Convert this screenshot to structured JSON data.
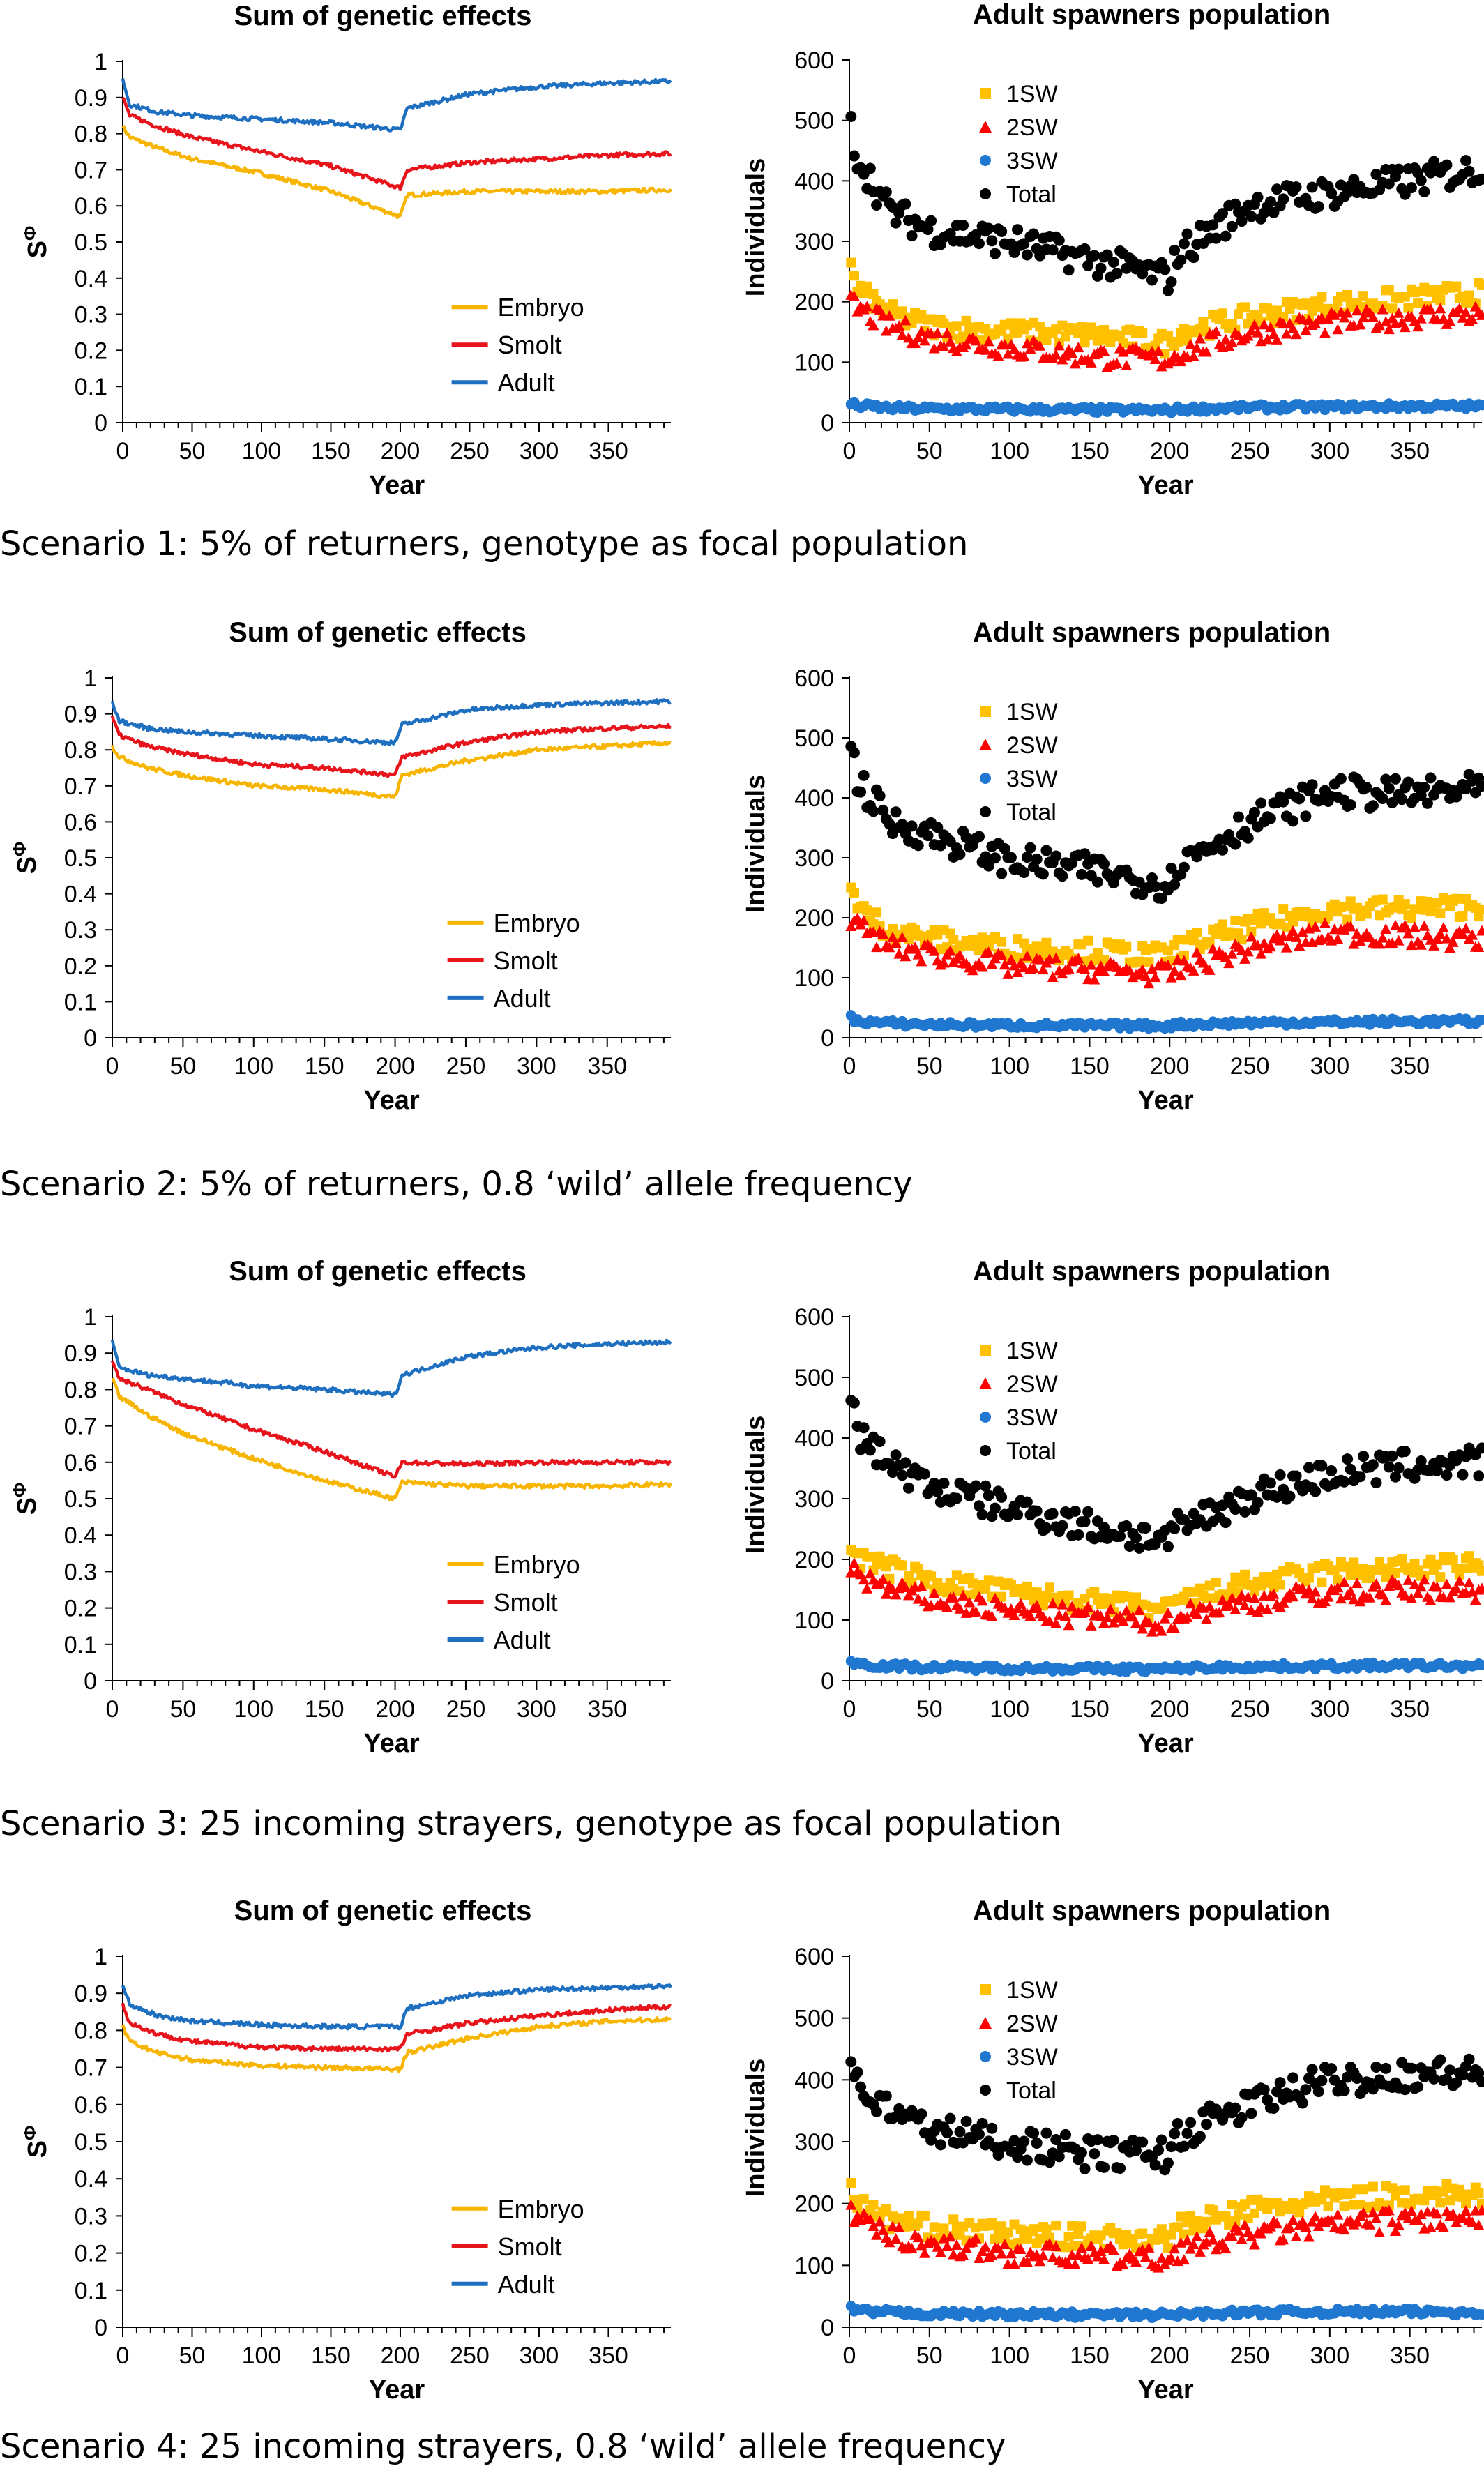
{
  "figure": {
    "captions": [
      "Scenario 1: 5% of returners, genotype as focal population",
      "Scenario 2: 5% of returners, 0.8 ‘wild’ allele frequency",
      "Scenario 3: 25 incoming strayers, genotype as focal population",
      "Scenario 4: 25 incoming strayers, 0.8 ‘wild’ allele frequency"
    ],
    "colors": {
      "embryo": "#F7B500",
      "smolt": "#E8141C",
      "adult": "#1F6FC0",
      "1sw": "#FFC000",
      "2sw": "#FF0000",
      "3sw": "#1F77D0",
      "total": "#000000"
    }
  },
  "chart_data": [
    {
      "scenario": 1,
      "type": "line",
      "title": "Sum of genetic effects",
      "xlabel": "Year",
      "ylabel": "S^Φ",
      "xlim": [
        0,
        395
      ],
      "ylim": [
        0,
        1
      ],
      "xticks": [
        0,
        50,
        100,
        150,
        200,
        250,
        300,
        350
      ],
      "yticks": [
        0,
        0.1,
        0.2,
        0.3,
        0.4,
        0.5,
        0.6,
        0.7,
        0.8,
        0.9,
        1
      ],
      "legend": "lower-right",
      "x": [
        0,
        5,
        25,
        50,
        100,
        150,
        200,
        205,
        250,
        300,
        350,
        395
      ],
      "series": [
        {
          "name": "Embryo",
          "values": [
            0.82,
            0.79,
            0.76,
            0.73,
            0.69,
            0.64,
            0.57,
            0.63,
            0.64,
            0.64,
            0.64,
            0.645
          ]
        },
        {
          "name": "Smolt",
          "values": [
            0.9,
            0.85,
            0.82,
            0.79,
            0.75,
            0.71,
            0.65,
            0.7,
            0.72,
            0.73,
            0.74,
            0.745
          ]
        },
        {
          "name": "Adult",
          "values": [
            0.95,
            0.88,
            0.86,
            0.85,
            0.84,
            0.83,
            0.81,
            0.87,
            0.91,
            0.93,
            0.94,
            0.945
          ]
        }
      ]
    },
    {
      "scenario": 1,
      "type": "scatter",
      "title": "Adult spawners population",
      "xlabel": "Year",
      "ylabel": "Individuals",
      "xlim": [
        0,
        395
      ],
      "ylim": [
        0,
        600
      ],
      "xticks": [
        0,
        50,
        100,
        150,
        200,
        250,
        300,
        350
      ],
      "yticks": [
        0,
        100,
        200,
        300,
        400,
        500,
        600
      ],
      "legend": "top-right",
      "x": [
        0,
        5,
        25,
        50,
        100,
        150,
        200,
        205,
        250,
        300,
        350,
        395
      ],
      "series": [
        {
          "name": "1SW",
          "values": [
            265,
            220,
            180,
            160,
            150,
            145,
            130,
            150,
            175,
            195,
            205,
            215
          ]
        },
        {
          "name": "2SW",
          "values": [
            200,
            190,
            160,
            140,
            125,
            110,
            105,
            115,
            150,
            165,
            175,
            180
          ]
        },
        {
          "name": "3SW",
          "values": [
            32,
            28,
            24,
            23,
            22,
            21,
            20,
            22,
            25,
            26,
            27,
            27
          ]
        },
        {
          "name": "Total",
          "values": [
            500,
            440,
            350,
            320,
            300,
            270,
            240,
            280,
            360,
            380,
            400,
            420
          ]
        }
      ]
    },
    {
      "scenario": 2,
      "type": "line",
      "title": "Sum of genetic effects",
      "xlabel": "Year",
      "ylabel": "S^Φ",
      "xlim": [
        0,
        395
      ],
      "ylim": [
        0,
        1
      ],
      "xticks": [
        0,
        50,
        100,
        150,
        200,
        250,
        300,
        350
      ],
      "yticks": [
        0,
        0.1,
        0.2,
        0.3,
        0.4,
        0.5,
        0.6,
        0.7,
        0.8,
        0.9,
        1
      ],
      "legend": "lower-right",
      "x": [
        0,
        5,
        25,
        50,
        100,
        150,
        200,
        205,
        250,
        300,
        350,
        395
      ],
      "series": [
        {
          "name": "Embryo",
          "values": [
            0.81,
            0.78,
            0.75,
            0.73,
            0.7,
            0.69,
            0.67,
            0.73,
            0.77,
            0.8,
            0.81,
            0.82
          ]
        },
        {
          "name": "Smolt",
          "values": [
            0.89,
            0.84,
            0.81,
            0.79,
            0.76,
            0.75,
            0.73,
            0.78,
            0.82,
            0.85,
            0.86,
            0.865
          ]
        },
        {
          "name": "Adult",
          "values": [
            0.93,
            0.88,
            0.86,
            0.85,
            0.84,
            0.83,
            0.82,
            0.87,
            0.91,
            0.925,
            0.93,
            0.935
          ]
        }
      ]
    },
    {
      "scenario": 2,
      "type": "scatter",
      "title": "Adult spawners population",
      "xlabel": "Year",
      "ylabel": "Individuals",
      "xlim": [
        0,
        395
      ],
      "ylim": [
        0,
        600
      ],
      "xticks": [
        0,
        50,
        100,
        150,
        200,
        250,
        300,
        350
      ],
      "yticks": [
        0,
        100,
        200,
        300,
        400,
        500,
        600
      ],
      "legend": "top-right",
      "x": [
        0,
        5,
        25,
        50,
        100,
        150,
        200,
        205,
        250,
        300,
        350,
        395
      ],
      "series": [
        {
          "name": "1SW",
          "values": [
            265,
            215,
            180,
            165,
            150,
            145,
            135,
            150,
            185,
            215,
            215,
            220
          ]
        },
        {
          "name": "2SW",
          "values": [
            205,
            185,
            155,
            140,
            120,
            115,
            105,
            115,
            150,
            175,
            170,
            165
          ]
        },
        {
          "name": "3SW",
          "values": [
            35,
            28,
            24,
            22,
            21,
            20,
            20,
            22,
            25,
            26,
            27,
            27
          ]
        },
        {
          "name": "Total",
          "values": [
            505,
            430,
            360,
            340,
            295,
            280,
            255,
            290,
            360,
            410,
            405,
            415
          ]
        }
      ]
    },
    {
      "scenario": 3,
      "type": "line",
      "title": "Sum of genetic effects",
      "xlabel": "Year",
      "ylabel": "S^Φ",
      "xlim": [
        0,
        395
      ],
      "ylim": [
        0,
        1
      ],
      "xticks": [
        0,
        50,
        100,
        150,
        200,
        250,
        300,
        350
      ],
      "yticks": [
        0,
        0.1,
        0.2,
        0.3,
        0.4,
        0.5,
        0.6,
        0.7,
        0.8,
        0.9,
        1
      ],
      "legend": "lower-right",
      "x": [
        0,
        5,
        25,
        50,
        100,
        150,
        200,
        205,
        250,
        300,
        350,
        395
      ],
      "series": [
        {
          "name": "Embryo",
          "values": [
            0.83,
            0.78,
            0.73,
            0.68,
            0.61,
            0.55,
            0.5,
            0.545,
            0.535,
            0.535,
            0.535,
            0.54
          ]
        },
        {
          "name": "Smolt",
          "values": [
            0.88,
            0.83,
            0.8,
            0.76,
            0.69,
            0.63,
            0.56,
            0.6,
            0.595,
            0.6,
            0.6,
            0.6
          ]
        },
        {
          "name": "Adult",
          "values": [
            0.93,
            0.86,
            0.84,
            0.83,
            0.81,
            0.8,
            0.785,
            0.84,
            0.89,
            0.915,
            0.925,
            0.93
          ]
        }
      ]
    },
    {
      "scenario": 3,
      "type": "scatter",
      "title": "Adult spawners population",
      "xlabel": "Year",
      "ylabel": "Individuals",
      "xlim": [
        0,
        395
      ],
      "ylim": [
        0,
        600
      ],
      "xticks": [
        0,
        50,
        100,
        150,
        200,
        250,
        300,
        350
      ],
      "yticks": [
        0,
        100,
        200,
        300,
        400,
        500,
        600
      ],
      "legend": "top-right",
      "x": [
        0,
        5,
        25,
        50,
        100,
        150,
        200,
        205,
        250,
        300,
        350,
        395
      ],
      "series": [
        {
          "name": "1SW",
          "values": [
            240,
            200,
            185,
            165,
            145,
            130,
            115,
            130,
            160,
            180,
            185,
            190
          ]
        },
        {
          "name": "2SW",
          "values": [
            195,
            175,
            150,
            135,
            115,
            105,
            95,
            110,
            130,
            145,
            150,
            150
          ]
        },
        {
          "name": "3SW",
          "values": [
            32,
            28,
            24,
            22,
            21,
            20,
            19,
            21,
            23,
            24,
            25,
            24
          ]
        },
        {
          "name": "Total",
          "values": [
            470,
            410,
            360,
            320,
            285,
            255,
            230,
            250,
            305,
            340,
            355,
            360
          ]
        }
      ]
    },
    {
      "scenario": 4,
      "type": "line",
      "title": "Sum of genetic effects",
      "xlabel": "Year",
      "ylabel": "S^Φ",
      "xlim": [
        0,
        395
      ],
      "ylim": [
        0,
        1
      ],
      "xticks": [
        0,
        50,
        100,
        150,
        200,
        250,
        300,
        350
      ],
      "yticks": [
        0,
        0.1,
        0.2,
        0.3,
        0.4,
        0.5,
        0.6,
        0.7,
        0.8,
        0.9,
        1
      ],
      "legend": "lower-right",
      "x": [
        0,
        5,
        25,
        50,
        100,
        150,
        200,
        205,
        250,
        300,
        350,
        395
      ],
      "series": [
        {
          "name": "Embryo",
          "values": [
            0.81,
            0.77,
            0.74,
            0.72,
            0.705,
            0.7,
            0.695,
            0.74,
            0.78,
            0.81,
            0.825,
            0.83
          ]
        },
        {
          "name": "Smolt",
          "values": [
            0.87,
            0.82,
            0.79,
            0.77,
            0.755,
            0.75,
            0.75,
            0.79,
            0.82,
            0.84,
            0.855,
            0.865
          ]
        },
        {
          "name": "Adult",
          "values": [
            0.92,
            0.87,
            0.84,
            0.825,
            0.815,
            0.81,
            0.81,
            0.86,
            0.895,
            0.91,
            0.915,
            0.92
          ]
        }
      ]
    },
    {
      "scenario": 4,
      "type": "scatter",
      "title": "Adult spawners population",
      "xlabel": "Year",
      "ylabel": "Individuals",
      "xlim": [
        0,
        395
      ],
      "ylim": [
        0,
        600
      ],
      "xticks": [
        0,
        50,
        100,
        150,
        200,
        250,
        300,
        350
      ],
      "yticks": [
        0,
        100,
        200,
        300,
        400,
        500,
        600
      ],
      "legend": "top-right",
      "x": [
        0,
        5,
        25,
        50,
        100,
        150,
        200,
        205,
        250,
        300,
        350,
        395
      ],
      "series": [
        {
          "name": "1SW",
          "values": [
            245,
            195,
            175,
            160,
            150,
            145,
            145,
            160,
            190,
            205,
            215,
            215
          ]
        },
        {
          "name": "2SW",
          "values": [
            190,
            170,
            150,
            135,
            120,
            115,
            110,
            125,
            150,
            165,
            175,
            175
          ]
        },
        {
          "name": "3SW",
          "values": [
            30,
            26,
            24,
            22,
            21,
            20,
            20,
            21,
            24,
            25,
            25,
            24
          ]
        },
        {
          "name": "Total",
          "values": [
            460,
            390,
            350,
            320,
            300,
            280,
            280,
            310,
            360,
            400,
            410,
            410
          ]
        }
      ]
    }
  ]
}
